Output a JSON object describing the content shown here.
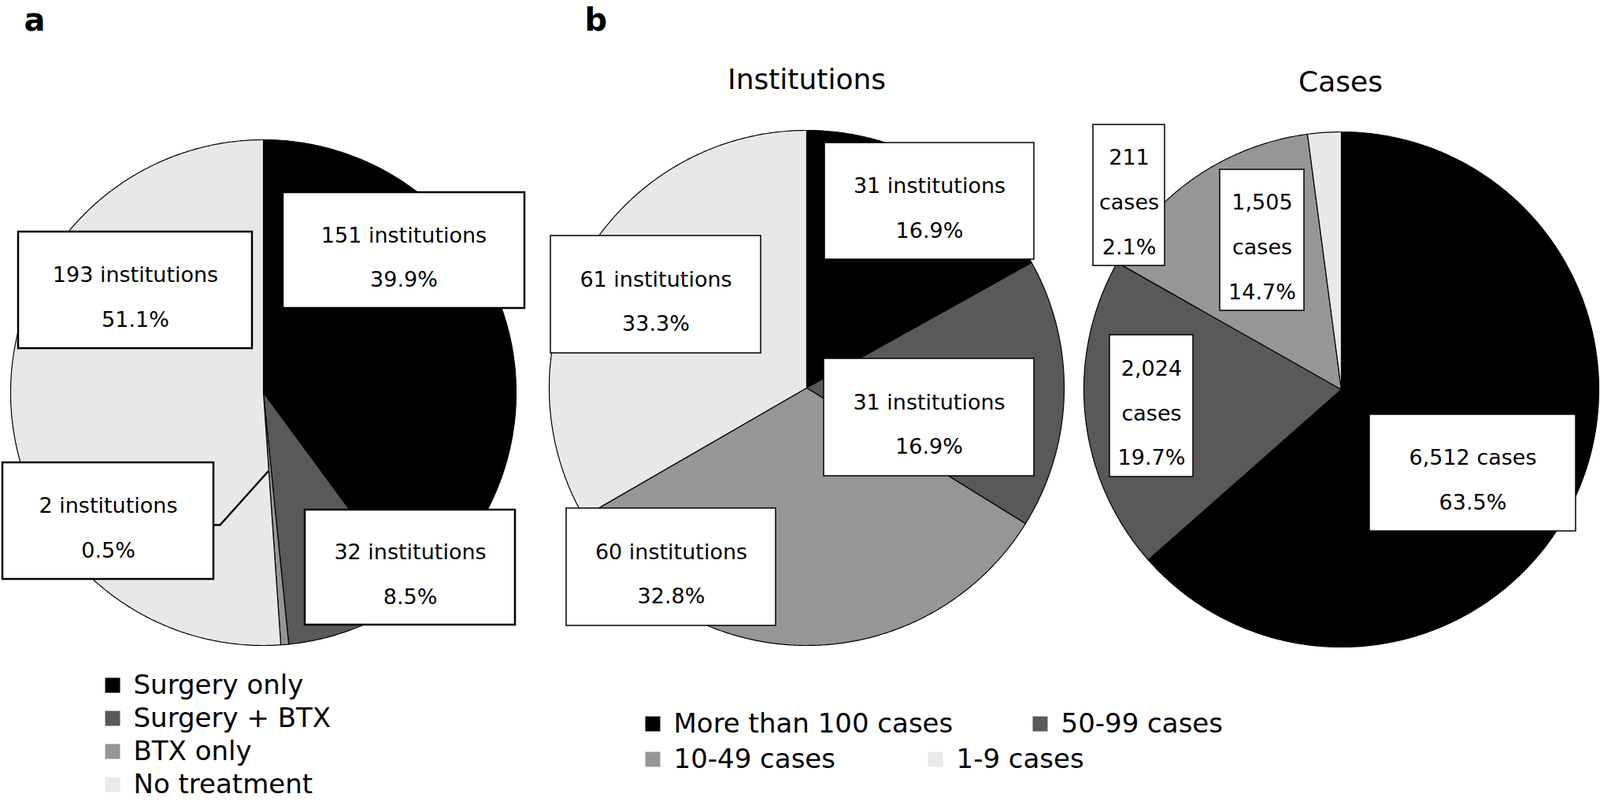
{
  "chart_data": [
    {
      "type": "pie",
      "annotations": [
        "a"
      ],
      "categories": [
        "Surgery only",
        "Surgery + BTX",
        "BTX only",
        "No treatment"
      ],
      "values": [
        39.9,
        8.5,
        0.5,
        51.1
      ],
      "value_labels": [
        "39.9%",
        "8.5%",
        "0.5%",
        "51.1%"
      ],
      "counts": [
        151,
        32,
        2,
        193
      ],
      "count_labels": [
        "151 institutions",
        "32 institutions",
        "2 institutions",
        "193 institutions"
      ],
      "colors": [
        "#000000",
        "#595959",
        "#969696",
        "#e8e8e8"
      ],
      "data_labels": true,
      "legend": "bottom"
    },
    {
      "type": "pie",
      "title": "Institutions",
      "annotations": [
        "b"
      ],
      "categories": [
        "More than 100 cases",
        "50-99 cases",
        "10-49 cases",
        "1-9 cases"
      ],
      "values": [
        16.9,
        16.9,
        32.8,
        33.3
      ],
      "value_labels": [
        "16.9%",
        "16.9%",
        "32.8%",
        "33.3%"
      ],
      "counts": [
        31,
        31,
        60,
        61
      ],
      "count_labels": [
        "31 institutions",
        "31 institutions",
        "60 institutions",
        "61 institutions"
      ],
      "colors": [
        "#000000",
        "#595959",
        "#969696",
        "#e8e8e8"
      ],
      "data_labels": true,
      "legend": "bottom"
    },
    {
      "type": "pie",
      "title": "Cases",
      "categories": [
        "More than 100 cases",
        "50-99 cases",
        "10-49 cases",
        "1-9 cases"
      ],
      "values": [
        63.5,
        19.7,
        14.7,
        2.1
      ],
      "value_labels": [
        "63.5%",
        "19.7%",
        "14.7%",
        "2.1%"
      ],
      "counts": [
        6512,
        2024,
        1505,
        211
      ],
      "count_labels": [
        "6,512 cases",
        "2,024 cases",
        "1,505 cases",
        "211 cases"
      ],
      "colors": [
        "#000000",
        "#595959",
        "#969696",
        "#e8e8e8"
      ],
      "data_labels": true
    }
  ]
}
